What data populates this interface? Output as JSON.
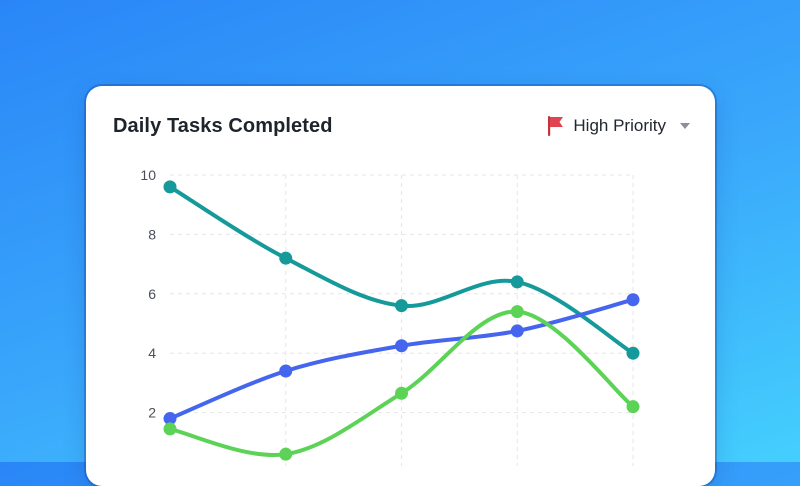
{
  "card": {
    "title": "Daily Tasks Completed",
    "filter": {
      "label": "High Priority",
      "icon": "flag-icon",
      "flag_color": "#e0454f"
    }
  },
  "chart_data": {
    "type": "line",
    "title": "Daily Tasks Completed",
    "xlabel": "",
    "ylabel": "",
    "x": [
      0,
      1,
      2,
      3,
      4
    ],
    "ylim": [
      0,
      10
    ],
    "yticks": [
      2,
      4,
      6,
      8,
      10
    ],
    "grid": true,
    "series": [
      {
        "color": "#15999a",
        "values": [
          9.6,
          7.2,
          5.6,
          6.4,
          4.0
        ]
      },
      {
        "color": "#4565ef",
        "values": [
          1.8,
          3.4,
          4.25,
          4.75,
          5.8
        ]
      },
      {
        "color": "#5cd356",
        "values": [
          1.45,
          0.6,
          2.65,
          5.4,
          2.2
        ]
      }
    ]
  }
}
